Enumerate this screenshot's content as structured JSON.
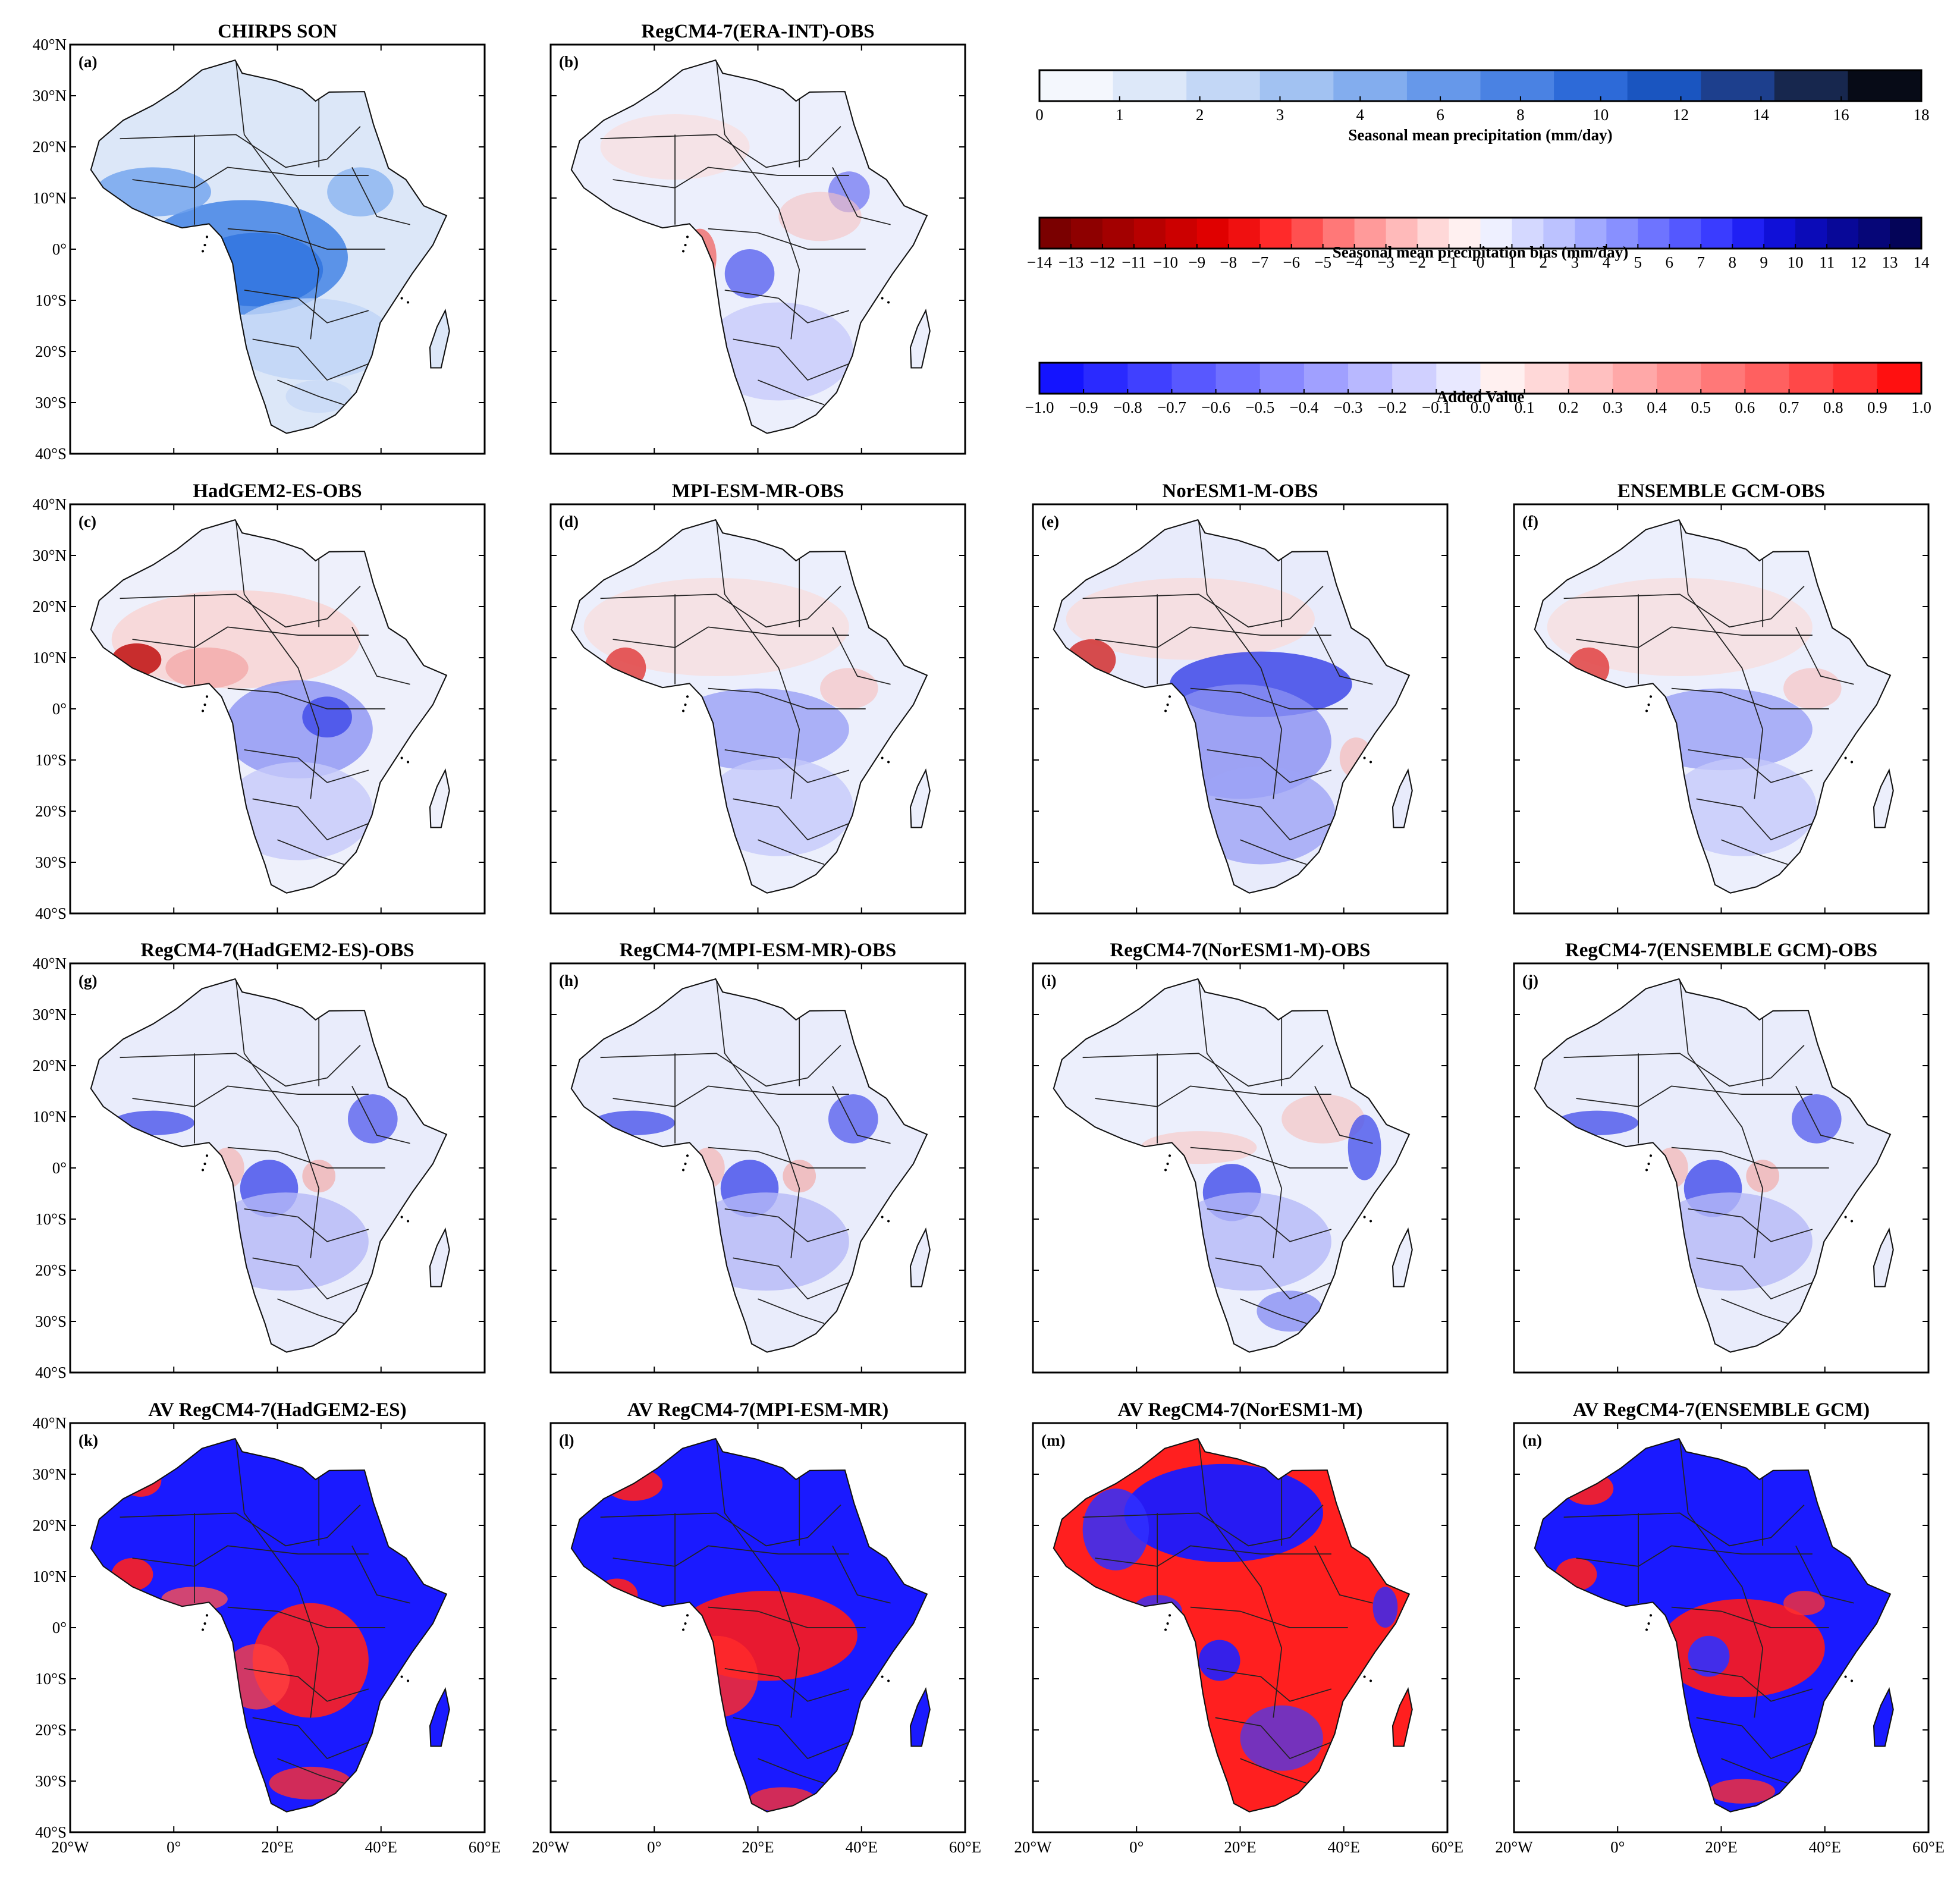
{
  "panels": [
    {
      "id": "a",
      "title": "CHIRPS  SON",
      "label": "(a)",
      "kind": "precip"
    },
    {
      "id": "b",
      "title": "RegCM4-7(ERA-INT)-OBS",
      "label": "(b)",
      "kind": "bias1"
    },
    {
      "id": "c",
      "title": "HadGEM2-ES-OBS",
      "label": "(c)",
      "kind": "biasGCM1"
    },
    {
      "id": "d",
      "title": "MPI-ESM-MR-OBS",
      "label": "(d)",
      "kind": "biasGCM2"
    },
    {
      "id": "e",
      "title": "NorESM1-M-OBS",
      "label": "(e)",
      "kind": "biasGCM3"
    },
    {
      "id": "f",
      "title": "ENSEMBLE  GCM-OBS",
      "label": "(f)",
      "kind": "biasGCM2"
    },
    {
      "id": "g",
      "title": "RegCM4-7(HadGEM2-ES)-OBS",
      "label": "(g)",
      "kind": "biasRCM"
    },
    {
      "id": "h",
      "title": "RegCM4-7(MPI-ESM-MR)-OBS",
      "label": "(h)",
      "kind": "biasRCM"
    },
    {
      "id": "i",
      "title": "RegCM4-7(NorESM1-M)-OBS",
      "label": "(i)",
      "kind": "biasRCM2"
    },
    {
      "id": "j",
      "title": "RegCM4-7(ENSEMBLE  GCM)-OBS",
      "label": "(j)",
      "kind": "biasRCM"
    },
    {
      "id": "k",
      "title": "AV  RegCM4-7(HadGEM2-ES)",
      "label": "(k)",
      "kind": "av1"
    },
    {
      "id": "l",
      "title": "AV  RegCM4-7(MPI-ESM-MR)",
      "label": "(l)",
      "kind": "av2"
    },
    {
      "id": "m",
      "title": "AV  RegCM4-7(NorESM1-M)",
      "label": "(m)",
      "kind": "av3"
    },
    {
      "id": "n",
      "title": "AV  RegCM4-7(ENSEMBLE  GCM)",
      "label": "(n)",
      "kind": "av4"
    }
  ],
  "lat_ticks": [
    "40°N",
    "30°N",
    "20°N",
    "10°N",
    "0°",
    "10°S",
    "20°S",
    "30°S",
    "40°S"
  ],
  "lon_ticks": [
    "20°W",
    "0°",
    "20°E",
    "40°E",
    "60°E"
  ],
  "colorbars": [
    {
      "id": "precip",
      "title": "Seasonal mean precipitation (mm/day)",
      "ticks": [
        "0",
        "1",
        "2",
        "3",
        "4",
        "6",
        "8",
        "10",
        "12",
        "14",
        "16",
        "18"
      ],
      "colors": [
        "#f4f7fd",
        "#dde8f9",
        "#c3d7f6",
        "#a2c2f2",
        "#83adee",
        "#6698ea",
        "#4a82e3",
        "#2d6ad8",
        "#1a55c0",
        "#1d3f8d",
        "#17274e",
        "#070b17"
      ]
    },
    {
      "id": "bias",
      "title": "Seasonal mean precipitation bias (mm/day)",
      "ticks": [
        "−14",
        "−13",
        "−12",
        "−11",
        "−10",
        "−9",
        "−8",
        "−7",
        "−6",
        "−5",
        "−4",
        "−3",
        "−2",
        "−1",
        "0",
        "1",
        "2",
        "3",
        "4",
        "5",
        "6",
        "7",
        "8",
        "9",
        "10",
        "11",
        "12",
        "13",
        "14"
      ],
      "colors": [
        "#7a0000",
        "#8e0000",
        "#a30000",
        "#b70000",
        "#cc0000",
        "#e00000",
        "#f01010",
        "#ff2a2a",
        "#ff5050",
        "#ff7878",
        "#ff9a9a",
        "#ffbaba",
        "#ffd8d8",
        "#fff0f0",
        "#eef0ff",
        "#d4d8ff",
        "#bcc2ff",
        "#a2aaff",
        "#8890ff",
        "#6e74ff",
        "#5458ff",
        "#3a3cff",
        "#2020f4",
        "#1010d8",
        "#0b0bb8",
        "#080898",
        "#060678",
        "#040458"
      ]
    },
    {
      "id": "av",
      "title": "Added Value",
      "ticks": [
        "−1.0",
        "−0.9",
        "−0.8",
        "−0.7",
        "−0.6",
        "−0.5",
        "−0.4",
        "−0.3",
        "−0.2",
        "−0.1",
        "0.0",
        "0.1",
        "0.2",
        "0.3",
        "0.4",
        "0.5",
        "0.6",
        "0.7",
        "0.8",
        "0.9",
        "1.0"
      ],
      "colors": [
        "#1414ff",
        "#2a2aff",
        "#4040ff",
        "#5858ff",
        "#7070ff",
        "#8888ff",
        "#a0a0ff",
        "#b8b8ff",
        "#d0d0ff",
        "#e8e8ff",
        "#fff0f0",
        "#ffd8d8",
        "#ffc0c0",
        "#ffa8a8",
        "#ff9090",
        "#ff7878",
        "#ff6060",
        "#ff4848",
        "#ff3030",
        "#ff1010"
      ]
    }
  ]
}
